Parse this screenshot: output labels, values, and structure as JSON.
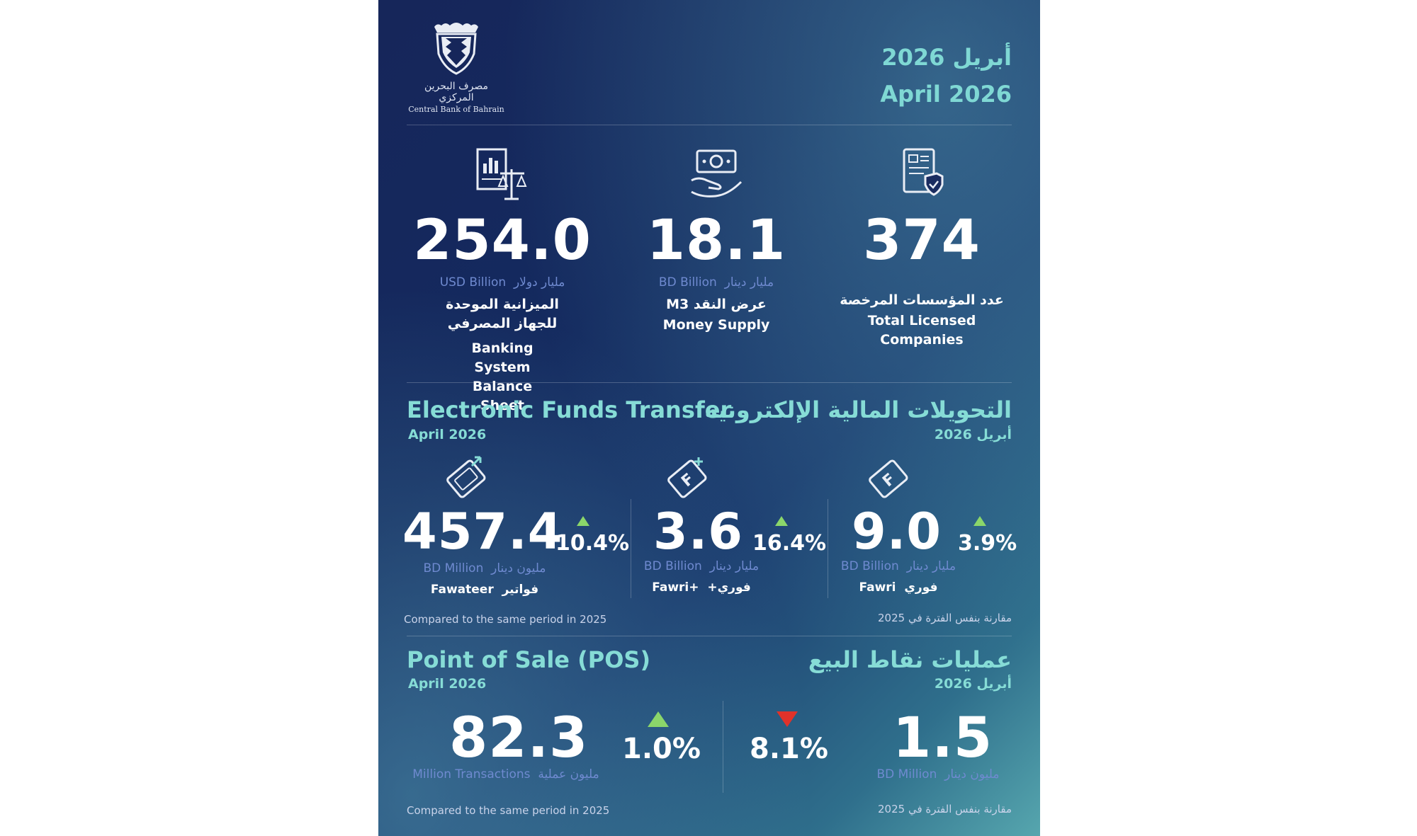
{
  "logo": {
    "icon": "central-bank-of-bahrain-crest-icon",
    "name_ar": "مصرف البحرين المركزي",
    "name_en": "Central Bank of Bahrain"
  },
  "date": {
    "ar": "أبريل 2026",
    "en": "April 2026"
  },
  "kpis": [
    {
      "icon": "balance-sheet-scale-icon",
      "value": "254.0",
      "unit_en": "USD Billion",
      "unit_ar": "مليار دولار",
      "label_ar": "الميزانية الموحدة للجهاز المصرفي",
      "label_en": "Banking System Balance Sheet"
    },
    {
      "icon": "money-hand-icon",
      "value": "18.1",
      "unit_en": "BD Billion",
      "unit_ar": "مليار دينار",
      "label_ar": "عرض النقد M3",
      "label_en": "Money Supply"
    },
    {
      "icon": "licensed-document-shield-icon",
      "value": "374",
      "unit_en": "",
      "unit_ar": "",
      "label_ar": "عدد المؤسسات المرخصة",
      "label_en": "Total Licensed Companies"
    }
  ],
  "eft": {
    "title_en": "Electronic Funds Transfer",
    "title_ar": "التحويلات المالية الإلكترونية",
    "sub_en": "April 2026",
    "sub_ar": "أبريل 2026",
    "items": [
      {
        "icon": "fawateer-card-icon",
        "value": "457.4",
        "change": "10.4%",
        "trend": "up",
        "unit_en": "BD Million",
        "unit_ar": "مليون دينار",
        "label_en": "Fawateer",
        "label_ar": "فواتير"
      },
      {
        "icon": "fawri-plus-card-icon",
        "value": "3.6",
        "change": "16.4%",
        "trend": "up",
        "unit_en": "BD Billion",
        "unit_ar": "مليار دينار",
        "label_en": "Fawri+",
        "label_ar": "فوري+"
      },
      {
        "icon": "fawri-card-icon",
        "value": "9.0",
        "change": "3.9%",
        "trend": "up",
        "unit_en": "BD Billion",
        "unit_ar": "مليار دينار",
        "label_en": "Fawri",
        "label_ar": "فوري"
      }
    ],
    "note_en": "Compared to the same period in 2025",
    "note_ar": "مقارنة بنفس الفترة في 2025"
  },
  "pos": {
    "title_en": "Point of Sale (POS)",
    "title_ar": "عمليات نقاط البيع",
    "sub_en": "April 2026",
    "sub_ar": "أبريل 2026",
    "items": [
      {
        "value": "82.3",
        "change": "1.0%",
        "trend": "up",
        "unit_en": "Million Transactions",
        "unit_ar": "مليون عملية"
      },
      {
        "value": "1.5",
        "change": "8.1%",
        "trend": "down",
        "unit_en": "BD Million",
        "unit_ar": "مليون دينار"
      }
    ],
    "note_en": "Compared to the same period in 2025",
    "note_ar": "مقارنة بنفس الفترة في 2025"
  },
  "colors": {
    "accent": "#86dcd6",
    "up": "#8bd66a",
    "down": "#e0322a",
    "unit": "#6f8ad0"
  }
}
